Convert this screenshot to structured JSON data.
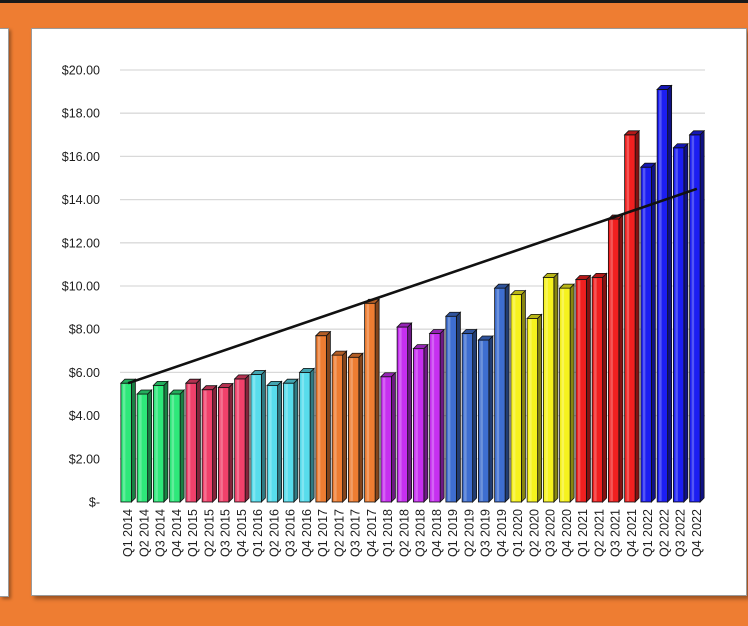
{
  "colors": {
    "frame": "#ee7d32",
    "card": "#ffffff",
    "gridline": "#d9d9d9",
    "trendline": "#111111"
  },
  "chart_data": {
    "type": "bar",
    "title": "",
    "xlabel": "",
    "ylabel": "",
    "ylim": [
      0,
      20
    ],
    "y_ticks": [
      "$-",
      "$2.00",
      "$4.00",
      "$6.00",
      "$8.00",
      "$10.00",
      "$12.00",
      "$14.00",
      "$16.00",
      "$18.00",
      "$20.00"
    ],
    "grid": true,
    "legend": "none",
    "trendline": {
      "type": "linear",
      "start": 5.5,
      "end": 14.5
    },
    "categories": [
      "Q1 2014",
      "Q2 2014",
      "Q3 2014",
      "Q4 2014",
      "Q1 2015",
      "Q2 2015",
      "Q3 2015",
      "Q4 2015",
      "Q1 2016",
      "Q2 2016",
      "Q3 2016",
      "Q4 2016",
      "Q1 2017",
      "Q2 2017",
      "Q3 2017",
      "Q4 2017",
      "Q1 2018",
      "Q2 2018",
      "Q3 2018",
      "Q4 2018",
      "Q1 2019",
      "Q2 2019",
      "Q3 2019",
      "Q4 2019",
      "Q1 2020",
      "Q2 2020",
      "Q3 2020",
      "Q4 2020",
      "Q1 2021",
      "Q2 2021",
      "Q3 2021",
      "Q4 2021",
      "Q1 2022",
      "Q2 2022",
      "Q3 2022",
      "Q4 2022"
    ],
    "values": [
      5.5,
      5.0,
      5.4,
      5.0,
      5.5,
      5.2,
      5.3,
      5.7,
      5.9,
      5.4,
      5.5,
      6.0,
      7.7,
      6.8,
      6.7,
      9.2,
      5.8,
      8.1,
      7.1,
      7.8,
      8.6,
      7.8,
      7.5,
      9.9,
      9.6,
      8.5,
      10.4,
      9.9,
      10.3,
      10.4,
      13.1,
      17.0,
      15.5,
      19.1,
      16.4,
      17.0
    ],
    "bar_colors": [
      "#2ee87a",
      "#2ee87a",
      "#2ee87a",
      "#2ee87a",
      "#f0416b",
      "#f0416b",
      "#f0416b",
      "#f0416b",
      "#58dcec",
      "#58dcec",
      "#58dcec",
      "#58dcec",
      "#ee7d32",
      "#ee7d32",
      "#ee7d32",
      "#ee7d32",
      "#c630f0",
      "#c630f0",
      "#c630f0",
      "#c630f0",
      "#3e6ed0",
      "#3e6ed0",
      "#3e6ed0",
      "#3e6ed0",
      "#f6f21e",
      "#f6f21e",
      "#f6f21e",
      "#f6f21e",
      "#f02020",
      "#f02020",
      "#f02020",
      "#f02020",
      "#1c1ef2",
      "#1c1ef2",
      "#1c1ef2",
      "#1c1ef2"
    ]
  }
}
